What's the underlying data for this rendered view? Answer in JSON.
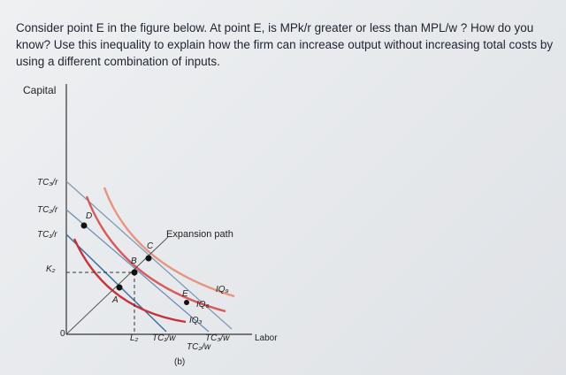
{
  "question": {
    "text": "Consider point E in the figure below. At point E, is MPk/r greater or less than MPL/w ? How do you know? Use this inequality to explain how the firm can increase output without increasing total costs by using a different combination of inputs."
  },
  "figure": {
    "y_axis_label": "Capital",
    "x_axis_label": "Labor",
    "origin": "0",
    "y_labels": [
      "TC₃/r",
      "TC₂/r",
      "TC₁/r",
      "K₂"
    ],
    "x_labels": [
      "L₂",
      "TC₁/w",
      "TC₂/w",
      "TC₃/w"
    ],
    "points": [
      "A",
      "B",
      "C",
      "D",
      "E"
    ],
    "isoquants": [
      "IQ₉",
      "IQ₆",
      "IQ₃"
    ],
    "expansion_path": "Expansion path",
    "caption": "(b)"
  }
}
